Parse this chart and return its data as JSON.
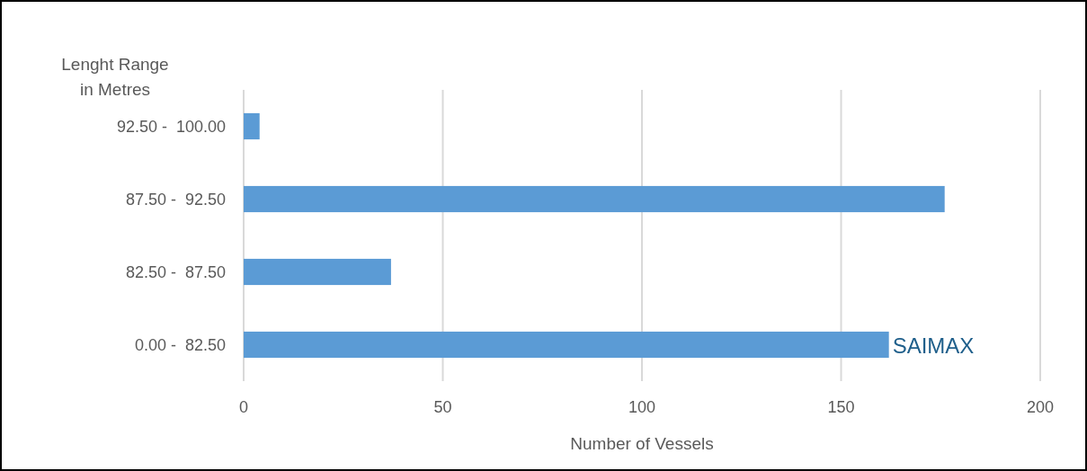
{
  "chart_data": {
    "type": "bar",
    "orientation": "horizontal",
    "ylabel": "Lenght Range in Metres",
    "xlabel": "Number of Vessels",
    "categories": [
      "92.50 -  100.00",
      "87.50 -  92.50",
      "82.50 -  87.50",
      "0.00 -  82.50"
    ],
    "values": [
      4,
      176,
      37,
      162
    ],
    "color": "#5b9bd5",
    "xlim": [
      0,
      200
    ],
    "xticks": [
      0,
      50,
      100,
      150,
      200
    ],
    "grid": "x",
    "annotations": [
      {
        "text": "SAIMAX",
        "x": 162,
        "y": "0.00 -  82.50"
      }
    ]
  }
}
